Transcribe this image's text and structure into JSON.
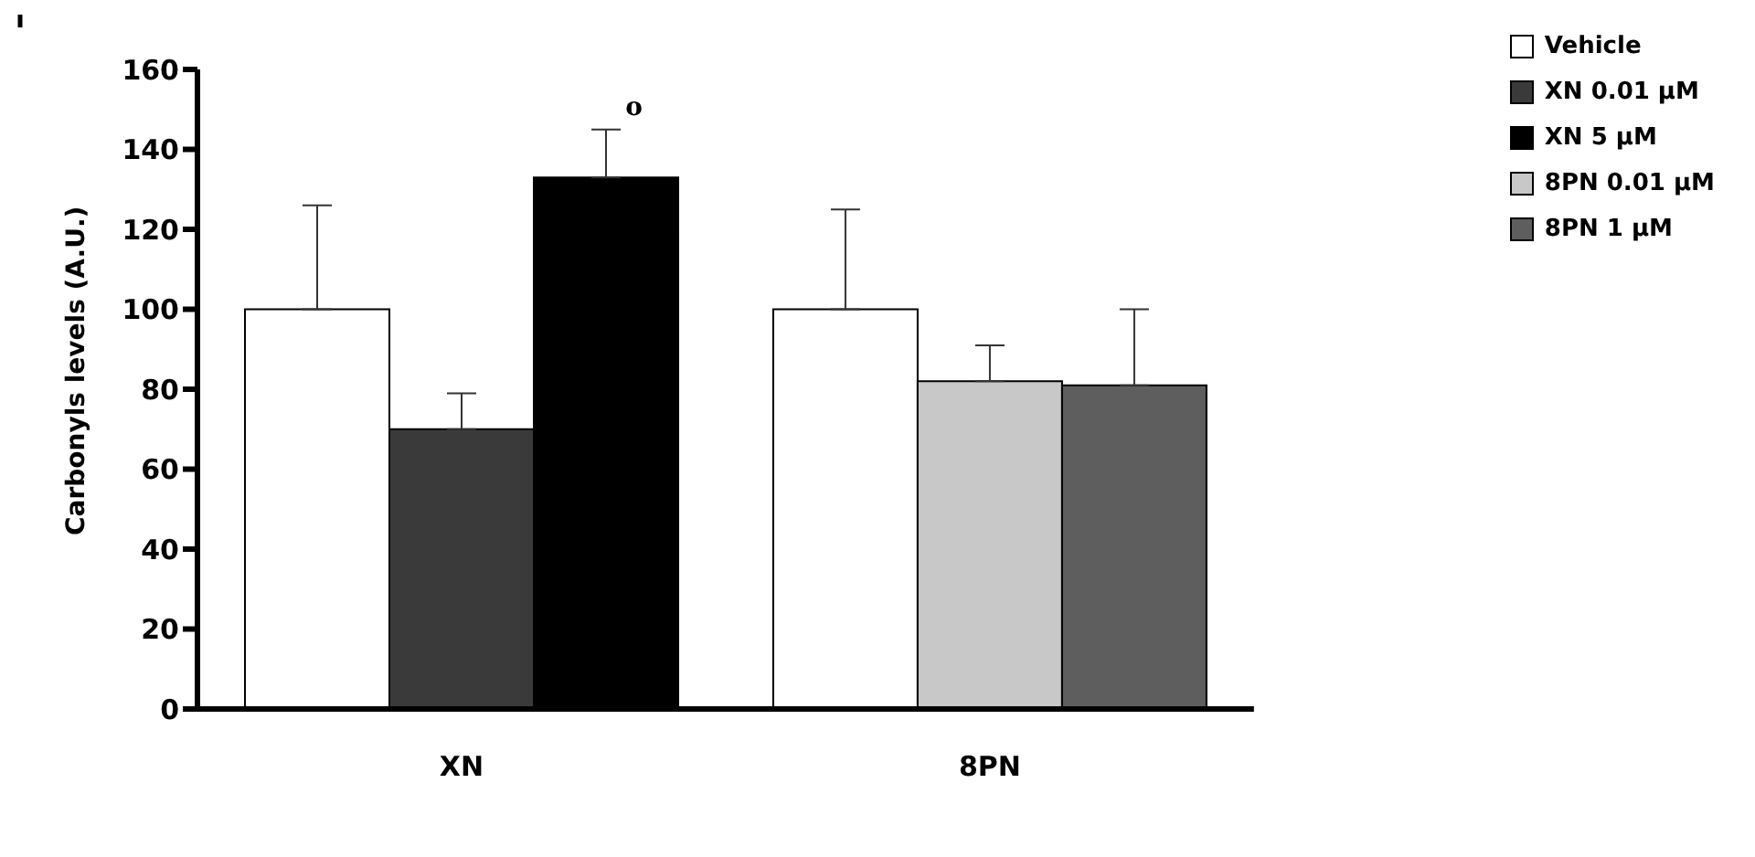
{
  "chart_data": {
    "type": "bar",
    "ylabel": "Carbonyls levels (A.U.)",
    "categories": [
      "XN",
      "8PN"
    ],
    "series": [
      {
        "name": "Vehicle",
        "color": "#ffffff",
        "values": [
          100,
          100
        ],
        "errors": [
          [
            100,
            126
          ],
          [
            100,
            125
          ]
        ]
      },
      {
        "name": "XN 0.01 µM",
        "color": "#3a3a3a",
        "values": [
          70,
          null
        ],
        "errors": [
          [
            70,
            79
          ],
          null
        ]
      },
      {
        "name": "XN 5 µM",
        "color": "#000000",
        "values": [
          133,
          null
        ],
        "errors": [
          [
            133,
            145
          ],
          null
        ]
      },
      {
        "name": "8PN 0.01 µM",
        "color": "#c8c8c8",
        "values": [
          null,
          82
        ],
        "errors": [
          null,
          [
            82,
            91
          ]
        ]
      },
      {
        "name": "8PN 1 µM",
        "color": "#5e5e5e",
        "values": [
          null,
          81
        ],
        "errors": [
          null,
          [
            81,
            100
          ]
        ]
      }
    ],
    "ylim": [
      0,
      160
    ],
    "yticks": [
      0,
      20,
      40,
      60,
      80,
      100,
      120,
      140,
      160
    ],
    "grid": false,
    "legend": "top right",
    "annotations": [
      "o"
    ]
  }
}
